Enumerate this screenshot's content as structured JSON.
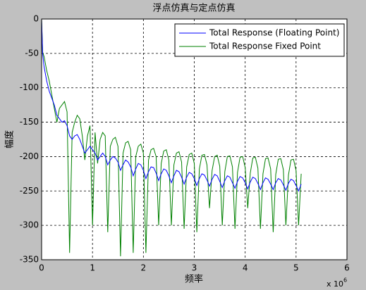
{
  "chart_data": {
    "type": "line",
    "title": "浮点仿真与定点仿真",
    "x_label": "频率",
    "y_label": "幅度",
    "x_multiplier": {
      "base": "x 10",
      "exponent": "6"
    },
    "x": [
      0,
      0.02,
      0.05,
      0.1,
      0.15,
      0.2,
      0.25,
      0.3,
      0.35,
      0.4,
      0.45,
      0.5,
      0.55,
      0.6,
      0.65,
      0.7,
      0.75,
      0.8,
      0.85,
      0.9,
      0.95,
      1.0,
      1.05,
      1.1,
      1.15,
      1.2,
      1.25,
      1.3,
      1.35,
      1.4,
      1.45,
      1.5,
      1.55,
      1.6,
      1.65,
      1.7,
      1.75,
      1.8,
      1.85,
      1.9,
      1.95,
      2.0,
      2.05,
      2.1,
      2.15,
      2.2,
      2.25,
      2.3,
      2.35,
      2.4,
      2.45,
      2.5,
      2.55,
      2.6,
      2.65,
      2.7,
      2.75,
      2.8,
      2.85,
      2.9,
      2.95,
      3.0,
      3.05,
      3.1,
      3.15,
      3.2,
      3.25,
      3.3,
      3.35,
      3.4,
      3.45,
      3.5,
      3.55,
      3.6,
      3.65,
      3.7,
      3.75,
      3.8,
      3.85,
      3.9,
      3.95,
      4.0,
      4.05,
      4.1,
      4.15,
      4.2,
      4.25,
      4.3,
      4.35,
      4.4,
      4.45,
      4.5,
      4.55,
      4.6,
      4.65,
      4.7,
      4.75,
      4.8,
      4.85,
      4.9,
      4.95,
      5.0,
      5.05,
      5.1
    ],
    "series": [
      {
        "name": "Total Response (Floating Point)",
        "color": "#0000ff",
        "values": [
          0,
          -50,
          -70,
          -90,
          -105,
          -115,
          -125,
          -140,
          -145,
          -150,
          -148,
          -155,
          -170,
          -175,
          -170,
          -168,
          -175,
          -185,
          -195,
          -190,
          -185,
          -190,
          -195,
          -205,
          -200,
          -195,
          -200,
          -212,
          -205,
          -200,
          -202,
          -208,
          -220,
          -212,
          -205,
          -208,
          -215,
          -228,
          -218,
          -210,
          -212,
          -220,
          -232,
          -222,
          -215,
          -216,
          -224,
          -235,
          -225,
          -218,
          -220,
          -228,
          -238,
          -228,
          -220,
          -222,
          -230,
          -240,
          -230,
          -223,
          -225,
          -232,
          -242,
          -232,
          -225,
          -227,
          -234,
          -243,
          -233,
          -226,
          -228,
          -236,
          -245,
          -235,
          -228,
          -230,
          -238,
          -246,
          -236,
          -229,
          -231,
          -238,
          -247,
          -237,
          -230,
          -232,
          -239,
          -248,
          -238,
          -231,
          -233,
          -240,
          -248,
          -238,
          -232,
          -234,
          -241,
          -249,
          -239,
          -233,
          -235,
          -242,
          -250,
          -240
        ]
      },
      {
        "name": "Total Response Fixed Point",
        "color": "#008000",
        "values": [
          0,
          -48,
          -55,
          -75,
          -90,
          -110,
          -130,
          -150,
          -130,
          -125,
          -120,
          -135,
          -340,
          -165,
          -150,
          -140,
          -145,
          -170,
          -205,
          -170,
          -155,
          -300,
          -165,
          -210,
          -175,
          -165,
          -170,
          -310,
          -185,
          -175,
          -172,
          -185,
          -345,
          -195,
          -180,
          -178,
          -190,
          -340,
          -200,
          -185,
          -182,
          -195,
          -340,
          -205,
          -190,
          -188,
          -200,
          -300,
          -210,
          -192,
          -190,
          -205,
          -300,
          -212,
          -195,
          -193,
          -208,
          -305,
          -215,
          -197,
          -195,
          -210,
          -310,
          -218,
          -198,
          -197,
          -212,
          -275,
          -220,
          -200,
          -198,
          -214,
          -300,
          -222,
          -200,
          -199,
          -215,
          -305,
          -223,
          -201,
          -200,
          -216,
          -275,
          -224,
          -202,
          -201,
          -217,
          -305,
          -225,
          -203,
          -202,
          -218,
          -310,
          -226,
          -204,
          -203,
          -219,
          -300,
          -227,
          -205,
          -204,
          -220,
          -300,
          -225
        ]
      }
    ],
    "xlim": [
      0,
      6
    ],
    "xticks": [
      0,
      1,
      2,
      3,
      4,
      5,
      6
    ],
    "ylim": [
      -350,
      0
    ],
    "yticks": [
      0,
      -50,
      -100,
      -150,
      -200,
      -250,
      -300,
      -350
    ],
    "grid": true,
    "legend": "northeast"
  }
}
